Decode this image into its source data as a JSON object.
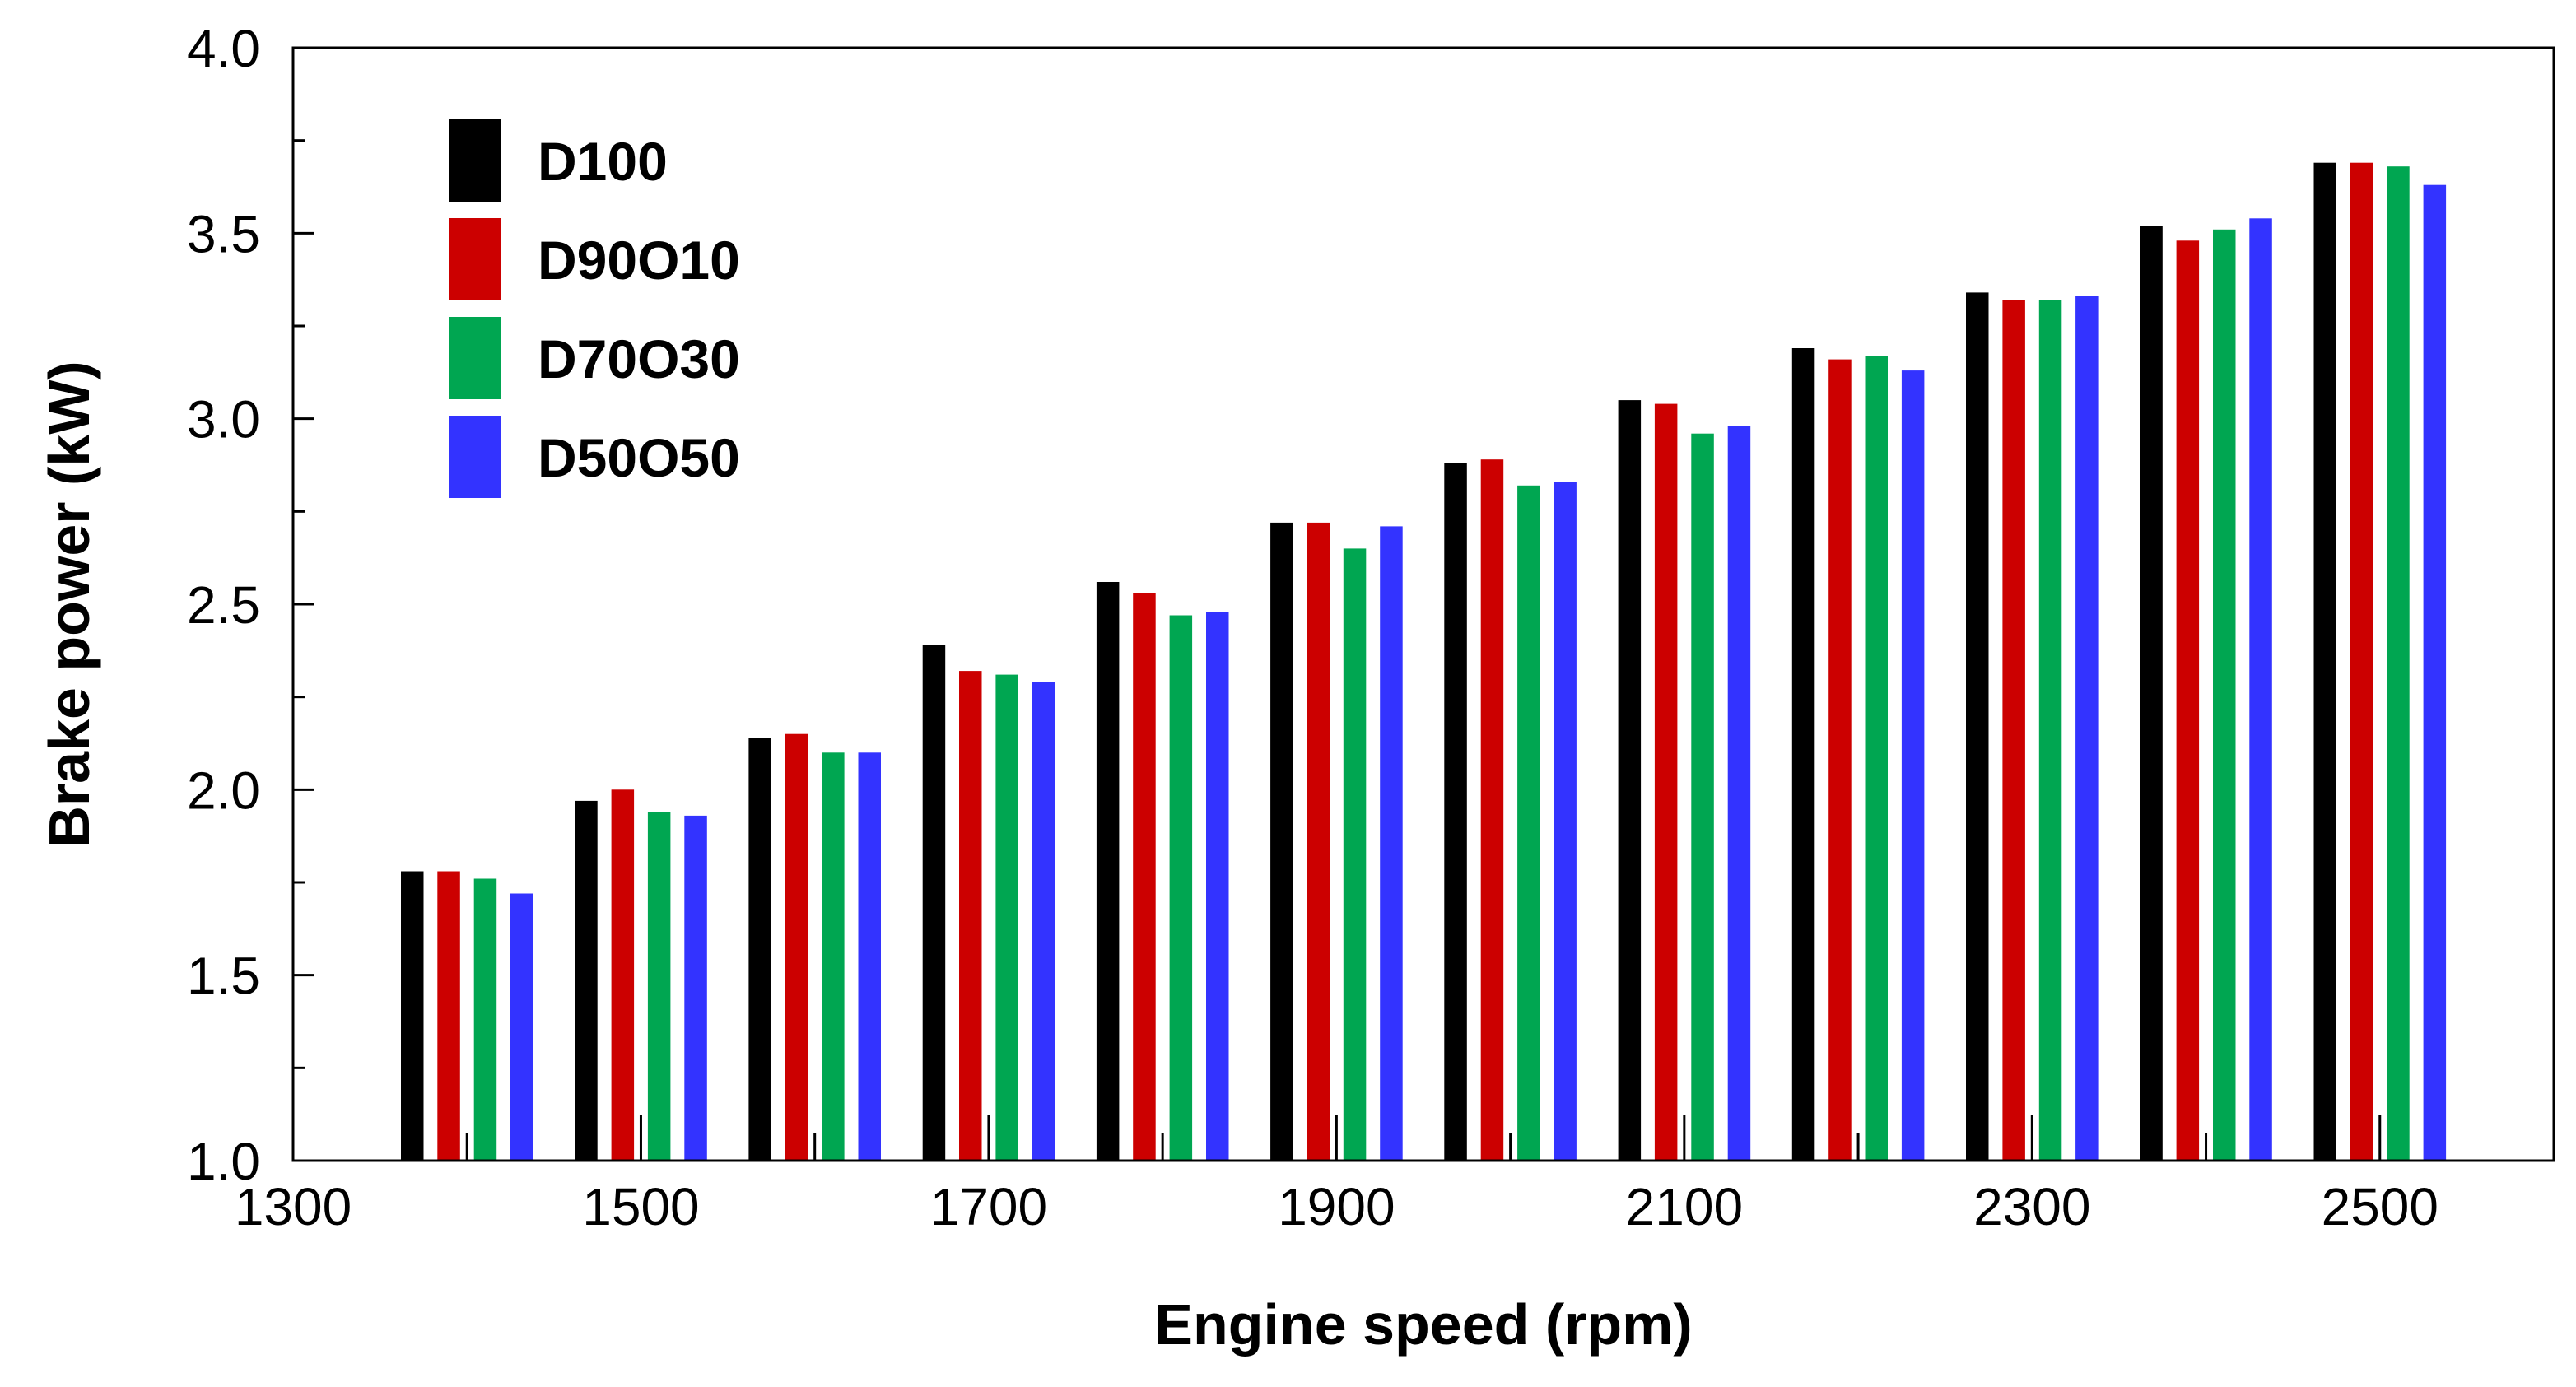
{
  "chart_data": {
    "type": "bar",
    "title": "",
    "xlabel": "Engine speed (rpm)",
    "ylabel": "Brake power (kW)",
    "xlim": [
      1300,
      2600
    ],
    "ylim": [
      1.0,
      4.0
    ],
    "x_ticks": [
      1300,
      1500,
      1700,
      1900,
      2100,
      2300,
      2500
    ],
    "x_tick_labels": [
      "1300",
      "1500",
      "1700",
      "1900",
      "2100",
      "2300",
      "2500"
    ],
    "y_ticks": [
      1.0,
      1.5,
      2.0,
      2.5,
      3.0,
      3.5,
      4.0
    ],
    "y_tick_labels": [
      "1.0",
      "1.5",
      "2.0",
      "2.5",
      "3.0",
      "3.5",
      "4.0"
    ],
    "x": [
      1400,
      1500,
      1600,
      1700,
      1800,
      1900,
      2000,
      2100,
      2200,
      2300,
      2400,
      2500
    ],
    "grid": false,
    "legend_position": "top-left",
    "series": [
      {
        "name": "D100",
        "color": "#000000",
        "values": [
          1.78,
          1.97,
          2.14,
          2.39,
          2.56,
          2.72,
          2.88,
          3.05,
          3.19,
          3.34,
          3.52,
          3.69
        ]
      },
      {
        "name": "D90O10",
        "color": "#cc0000",
        "values": [
          1.78,
          2.0,
          2.15,
          2.32,
          2.53,
          2.72,
          2.89,
          3.04,
          3.16,
          3.32,
          3.48,
          3.69
        ]
      },
      {
        "name": "D70O30",
        "color": "#00a651",
        "values": [
          1.76,
          1.94,
          2.1,
          2.31,
          2.47,
          2.65,
          2.82,
          2.96,
          3.17,
          3.32,
          3.51,
          3.68
        ]
      },
      {
        "name": "D50O50",
        "color": "#3333ff",
        "values": [
          1.72,
          1.93,
          2.1,
          2.29,
          2.48,
          2.71,
          2.83,
          2.98,
          3.13,
          3.33,
          3.54,
          3.63
        ]
      }
    ]
  }
}
